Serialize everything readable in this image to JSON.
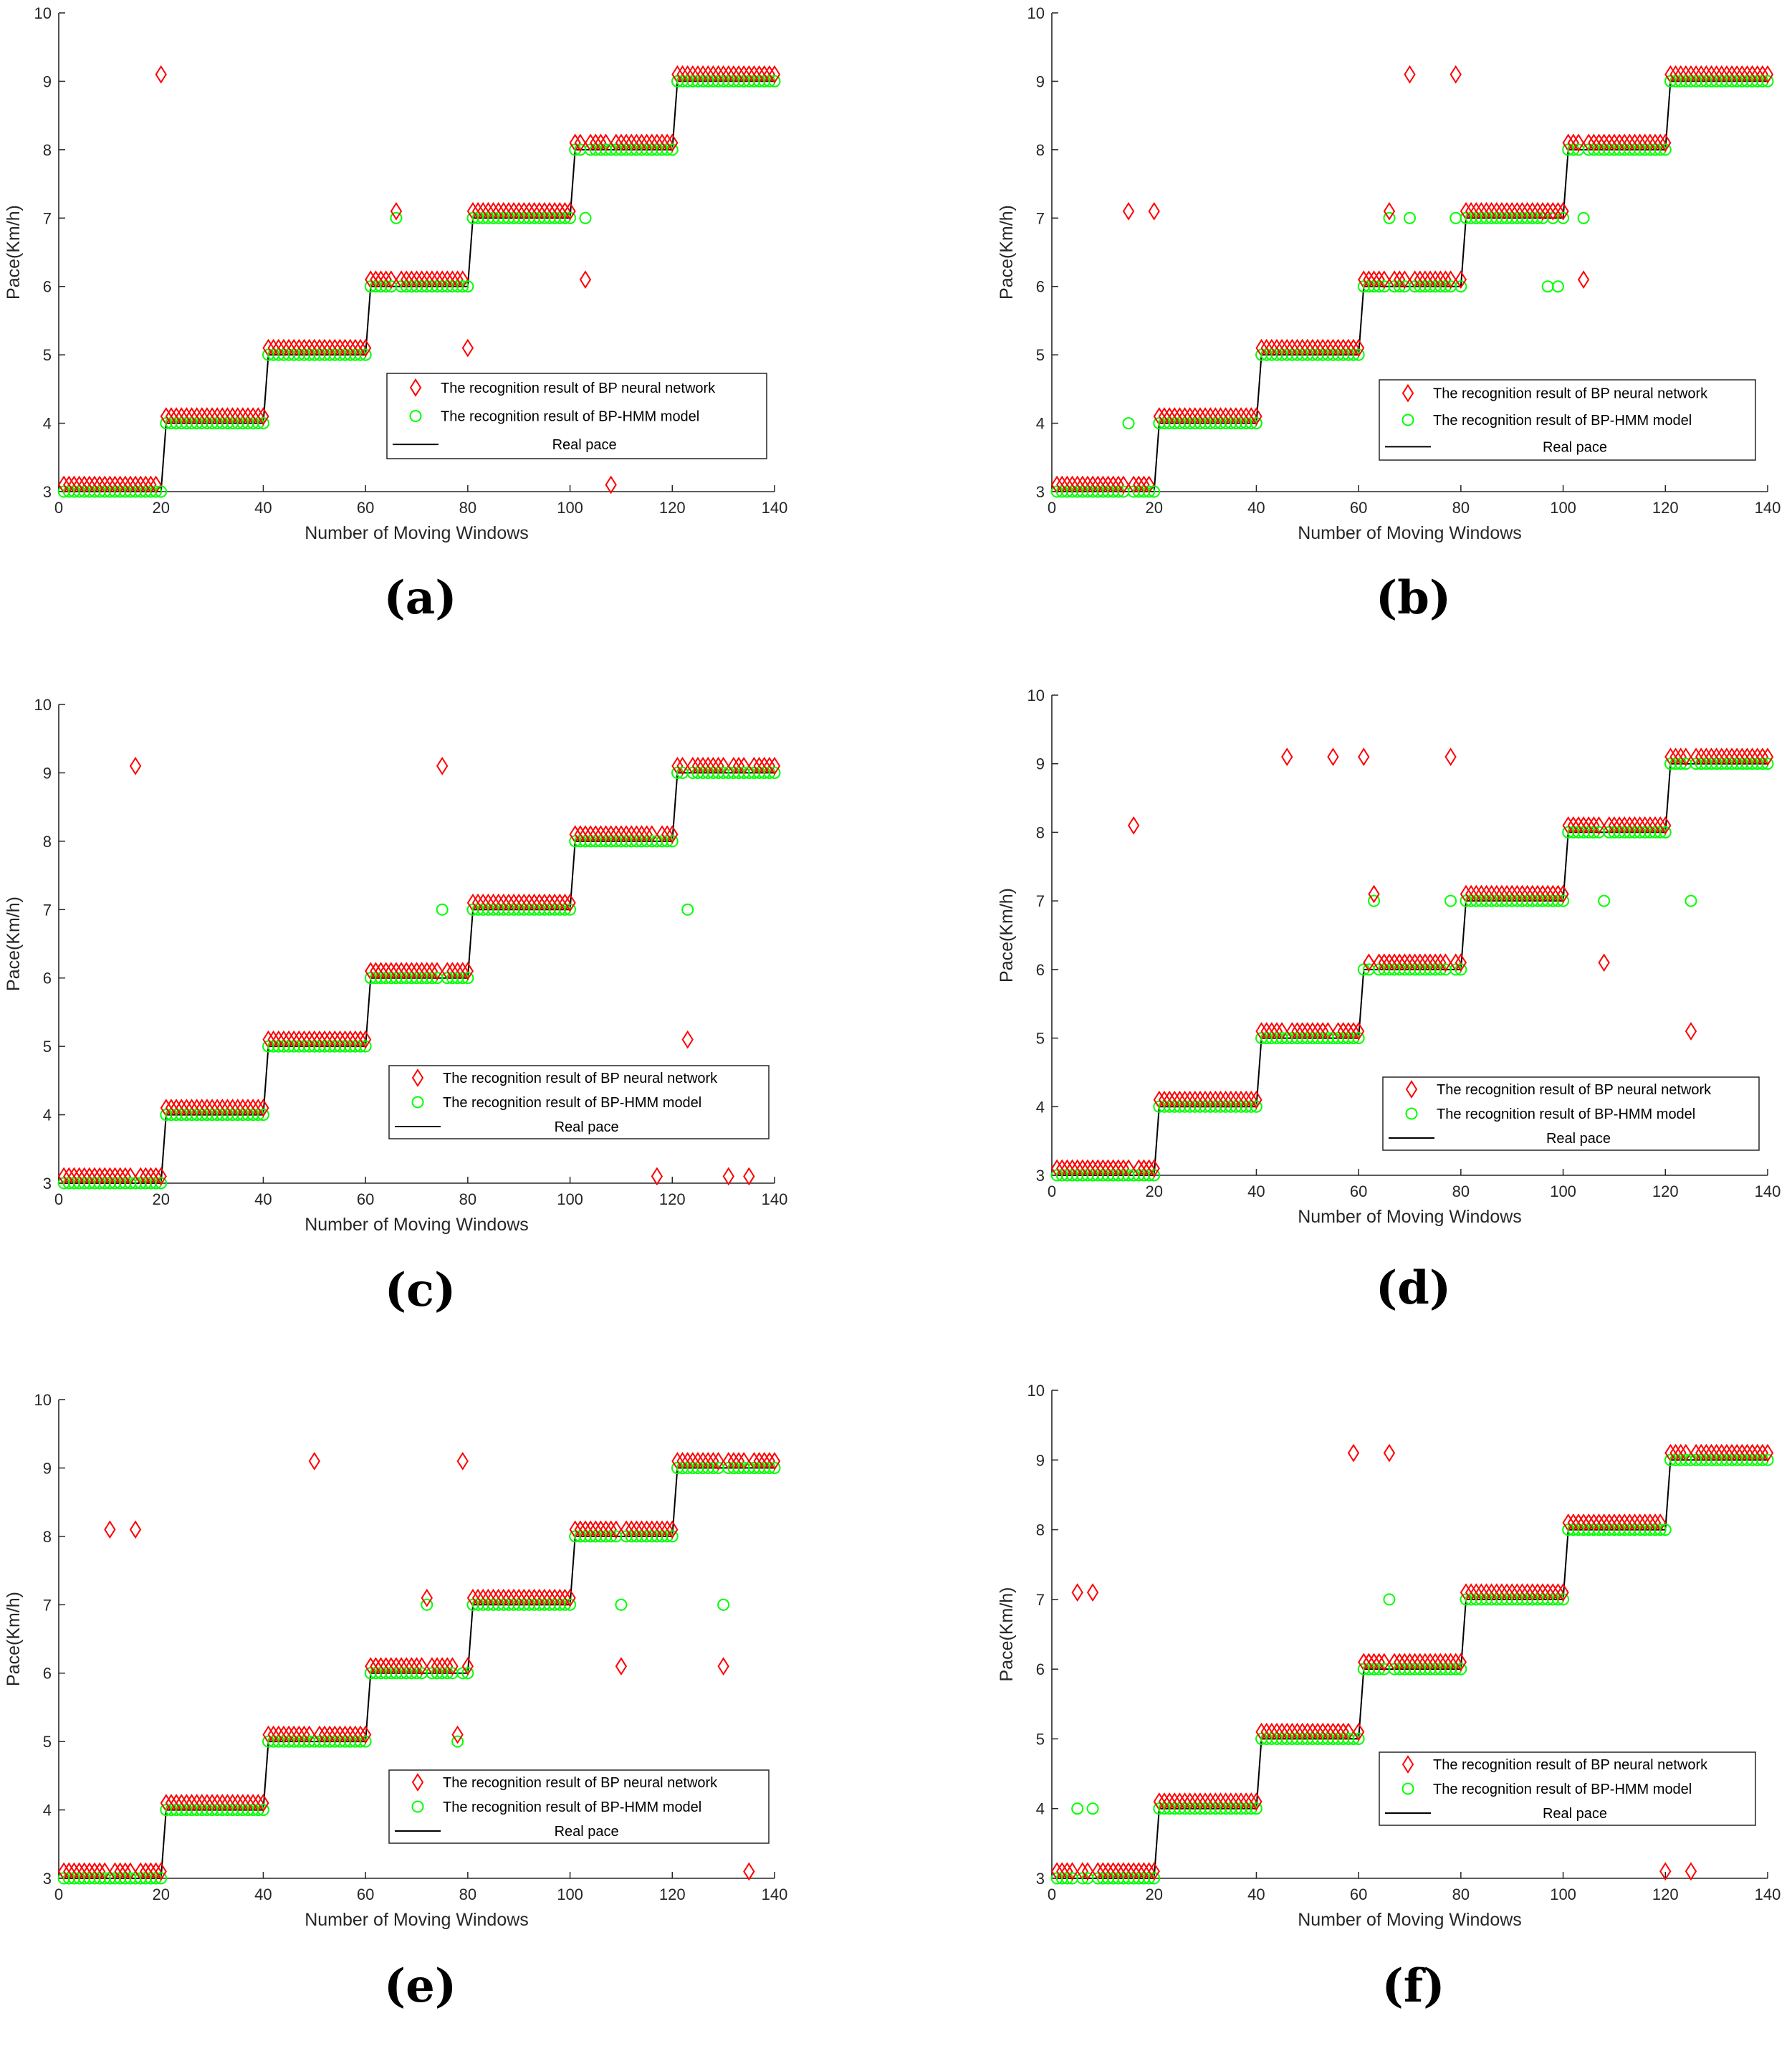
{
  "colors": {
    "bp": "#ff0000",
    "hmm": "#00ff00",
    "real": "#000000",
    "axis": "#262626"
  },
  "chart_data": [
    {
      "type": "scatter",
      "panel_label": "(a)",
      "xlabel": "Number of Moving Windows",
      "ylabel": "Pace(Km/h)",
      "xlim": [
        0,
        140
      ],
      "ylim": [
        3,
        10
      ],
      "xticks": [
        "0",
        "20",
        "40",
        "60",
        "80",
        "100",
        "120",
        "140"
      ],
      "yticks": [
        "3",
        "4",
        "5",
        "6",
        "7",
        "8",
        "9",
        "10"
      ],
      "legend": [
        "The recognition result of BP neural network",
        "The recognition result of BP-HMM model",
        "Real pace"
      ],
      "legend_position": "lower-right",
      "real_pace": [
        3,
        4,
        5,
        6,
        7,
        8,
        9
      ],
      "bp_outliers": [
        [
          20,
          9.1
        ],
        [
          66,
          7.1
        ],
        [
          80,
          5.1
        ],
        [
          103,
          6.1
        ],
        [
          108,
          3.1
        ]
      ],
      "hmm_outliers": [
        [
          66,
          7.0
        ],
        [
          103,
          7.0
        ]
      ]
    },
    {
      "type": "scatter",
      "panel_label": "(b)",
      "xlabel": "Number of Moving Windows",
      "ylabel": "Pace(Km/h)",
      "xlim": [
        0,
        140
      ],
      "ylim": [
        3,
        10
      ],
      "xticks": [
        "0",
        "20",
        "40",
        "60",
        "80",
        "100",
        "120",
        "140"
      ],
      "yticks": [
        "3",
        "4",
        "5",
        "6",
        "7",
        "8",
        "9",
        "10"
      ],
      "legend": [
        "The recognition result of BP neural network",
        "The recognition result of BP-HMM model",
        "Real pace"
      ],
      "legend_position": "lower-right",
      "real_pace": [
        3,
        4,
        5,
        6,
        7,
        8,
        9
      ],
      "bp_outliers": [
        [
          15,
          7.1
        ],
        [
          20,
          7.1
        ],
        [
          66,
          7.1
        ],
        [
          70,
          9.1
        ],
        [
          79,
          9.1
        ],
        [
          100,
          7.1
        ],
        [
          104,
          6.1
        ]
      ],
      "hmm_outliers": [
        [
          15,
          4.0
        ],
        [
          66,
          7.0
        ],
        [
          70,
          7.0
        ],
        [
          79,
          7.0
        ],
        [
          97,
          6.0
        ],
        [
          99,
          6.0
        ],
        [
          100,
          7.0
        ],
        [
          104,
          7.0
        ]
      ]
    },
    {
      "type": "scatter",
      "panel_label": "(c)",
      "xlabel": "Number of Moving Windows",
      "ylabel": "Pace(Km/h)",
      "xlim": [
        0,
        140
      ],
      "ylim": [
        3,
        10
      ],
      "xticks": [
        "0",
        "20",
        "40",
        "60",
        "80",
        "100",
        "120",
        "140"
      ],
      "yticks": [
        "3",
        "4",
        "5",
        "6",
        "7",
        "8",
        "9",
        "10"
      ],
      "legend": [
        "The recognition result of BP neural network",
        "The recognition result of BP-HMM model",
        "Real pace"
      ],
      "legend_position": "lower-right",
      "real_pace": [
        3,
        4,
        5,
        6,
        7,
        8,
        9
      ],
      "bp_outliers": [
        [
          15,
          9.1
        ],
        [
          75,
          9.1
        ],
        [
          117,
          3.1
        ],
        [
          123,
          5.1
        ],
        [
          131,
          3.1
        ],
        [
          135,
          3.1
        ]
      ],
      "hmm_outliers": [
        [
          75,
          7.0
        ],
        [
          123,
          7.0
        ]
      ]
    },
    {
      "type": "scatter",
      "panel_label": "(d)",
      "xlabel": "Number of Moving Windows",
      "ylabel": "Pace(Km/h)",
      "xlim": [
        0,
        140
      ],
      "ylim": [
        3,
        10
      ],
      "xticks": [
        "0",
        "20",
        "40",
        "60",
        "80",
        "100",
        "120",
        "140"
      ],
      "yticks": [
        "3",
        "4",
        "5",
        "6",
        "7",
        "8",
        "9",
        "10"
      ],
      "legend": [
        "The recognition result of BP neural network",
        "The recognition result of BP-HMM model",
        "Real pace"
      ],
      "legend_position": "lower-right",
      "real_pace": [
        3,
        4,
        5,
        6,
        7,
        8,
        9
      ],
      "bp_outliers": [
        [
          16,
          8.1
        ],
        [
          46,
          9.1
        ],
        [
          55,
          9.1
        ],
        [
          61,
          9.1
        ],
        [
          63,
          7.1
        ],
        [
          78,
          9.1
        ],
        [
          108,
          6.1
        ],
        [
          125,
          5.1
        ]
      ],
      "hmm_outliers": [
        [
          63,
          7.0
        ],
        [
          78,
          7.0
        ],
        [
          108,
          7.0
        ],
        [
          125,
          7.0
        ]
      ]
    },
    {
      "type": "scatter",
      "panel_label": "(e)",
      "xlabel": "Number of Moving Windows",
      "ylabel": "Pace(Km/h)",
      "xlim": [
        0,
        140
      ],
      "ylim": [
        3,
        10
      ],
      "xticks": [
        "0",
        "20",
        "40",
        "60",
        "80",
        "100",
        "120",
        "140"
      ],
      "yticks": [
        "3",
        "4",
        "5",
        "6",
        "7",
        "8",
        "9",
        "10"
      ],
      "legend": [
        "The recognition result of BP neural network",
        "The recognition result of BP-HMM model",
        "Real pace"
      ],
      "legend_position": "lower-right",
      "real_pace": [
        3,
        4,
        5,
        6,
        7,
        8,
        9
      ],
      "bp_outliers": [
        [
          10,
          8.1
        ],
        [
          15,
          8.1
        ],
        [
          50,
          9.1
        ],
        [
          72,
          7.1
        ],
        [
          78,
          5.1
        ],
        [
          79,
          9.1
        ],
        [
          110,
          6.1
        ],
        [
          130,
          6.1
        ],
        [
          135,
          3.1
        ]
      ],
      "hmm_outliers": [
        [
          72,
          7.0
        ],
        [
          78,
          5.0
        ],
        [
          110,
          7.0
        ],
        [
          130,
          7.0
        ]
      ]
    },
    {
      "type": "scatter",
      "panel_label": "(f)",
      "xlabel": "Number of Moving Windows",
      "ylabel": "Pace(Km/h)",
      "xlim": [
        0,
        140
      ],
      "ylim": [
        3,
        10
      ],
      "xticks": [
        "0",
        "20",
        "40",
        "60",
        "80",
        "100",
        "120",
        "140"
      ],
      "yticks": [
        "3",
        "4",
        "5",
        "6",
        "7",
        "8",
        "9",
        "10"
      ],
      "legend": [
        "The recognition result of BP neural network",
        "The recognition result of BP-HMM model",
        "Real pace"
      ],
      "legend_position": "lower-right",
      "real_pace": [
        3,
        4,
        5,
        6,
        7,
        8,
        9
      ],
      "bp_outliers": [
        [
          5,
          7.1
        ],
        [
          8,
          7.1
        ],
        [
          59,
          9.1
        ],
        [
          66,
          9.1
        ],
        [
          120,
          3.1
        ],
        [
          125,
          3.1
        ]
      ],
      "hmm_outliers": [
        [
          5,
          4.0
        ],
        [
          8,
          4.0
        ],
        [
          66,
          7.0
        ]
      ]
    }
  ]
}
